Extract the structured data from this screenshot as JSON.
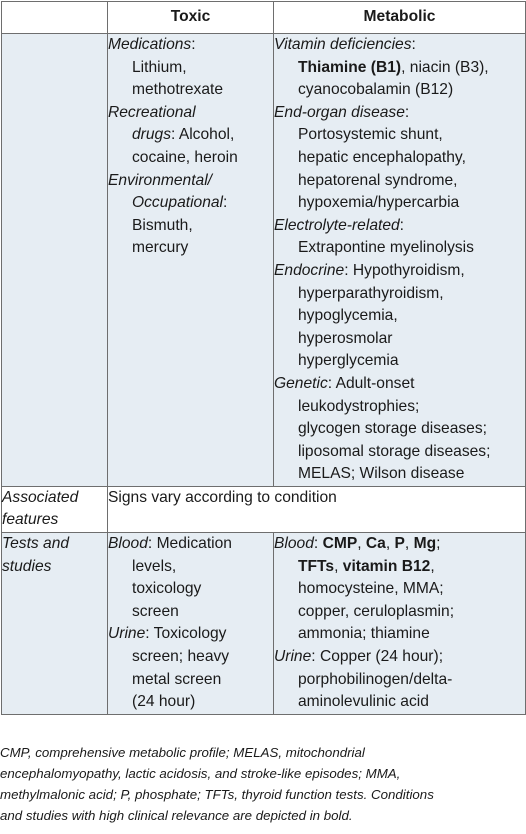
{
  "header": {
    "toxic": "Toxic",
    "metabolic": "Metabolic"
  },
  "row1": {
    "toxic": [
      {
        "head": "Medications",
        "sep": ":",
        "first": "",
        "lines": [
          "Lithium,",
          "methotrexate"
        ]
      },
      {
        "head": "Recreational",
        "sep": "",
        "first": "",
        "lines": [
          "drugs: Alcohol,",
          "cocaine, heroin"
        ],
        "lines_italic_prefix": "drugs"
      },
      {
        "head": "Environmental/",
        "sep": "",
        "first": "",
        "lines": [
          "Occupational:",
          "Bismuth,",
          "mercury"
        ]
      }
    ],
    "metabolic": {
      "vit_head": "Vitamin deficiencies",
      "vit_l1_bold": "Thiamine (B1)",
      "vit_l1_rest": ", niacin (B3),",
      "vit_l2": "cyanocobalamin (B12)",
      "organ_head": "End-organ disease",
      "organ_lines": [
        "Portosystemic shunt,",
        "hepatic encephalopathy,",
        "hepatorenal syndrome,",
        "hypoxemia/hypercarbia"
      ],
      "elec_head": "Electrolyte-related",
      "elec_lines": [
        "Extrapontine myelinolysis"
      ],
      "endo_head": "Endocrine",
      "endo_first": " Hypothyroidism,",
      "endo_lines": [
        "hyperparathyroidism,",
        "hypoglycemia,",
        "hyperosmolar",
        "hyperglycemia"
      ],
      "gen_head": "Genetic",
      "gen_first": " Adult-onset",
      "gen_lines": [
        "leukodystrophies;",
        "glycogen storage diseases;",
        "liposomal storage diseases;",
        "MELAS; Wilson disease"
      ]
    }
  },
  "row2": {
    "label_l1": "Associated",
    "label_l2": "features",
    "text": "Signs vary according to condition"
  },
  "row3": {
    "label_l1": "Tests and",
    "label_l2": "studies",
    "toxic": {
      "blood_head": "Blood",
      "blood_first": " Medication",
      "blood_lines": [
        "levels,",
        "toxicology",
        "screen"
      ],
      "urine_head": "Urine",
      "urine_first": " Toxicology",
      "urine_lines": [
        "screen; heavy",
        "metal screen",
        "(24 hour)"
      ]
    },
    "metabolic": {
      "blood_head": "Blood",
      "cmp": "CMP",
      "ca": "Ca",
      "p": "P",
      "mg": "Mg",
      "tfts": "TFTs",
      "b12": "vitamin B12",
      "lines": [
        "homocysteine, MMA;",
        "copper, ceruloplasmin;",
        "ammonia; thiamine"
      ],
      "urine_head": "Urine",
      "urine_first": " Copper (24 hour);",
      "urine_lines": [
        "porphobilinogen/delta-",
        "aminolevulinic acid"
      ]
    }
  },
  "footnote": [
    "CMP, comprehensive metabolic profile; MELAS, mitochondrial",
    "encephalomyopathy, lactic acidosis, and stroke-like episodes; MMA,",
    "methylmalonic acid; P, phosphate; TFTs, thyroid function tests. Conditions",
    "and studies with high clinical relevance are depicted in bold."
  ]
}
